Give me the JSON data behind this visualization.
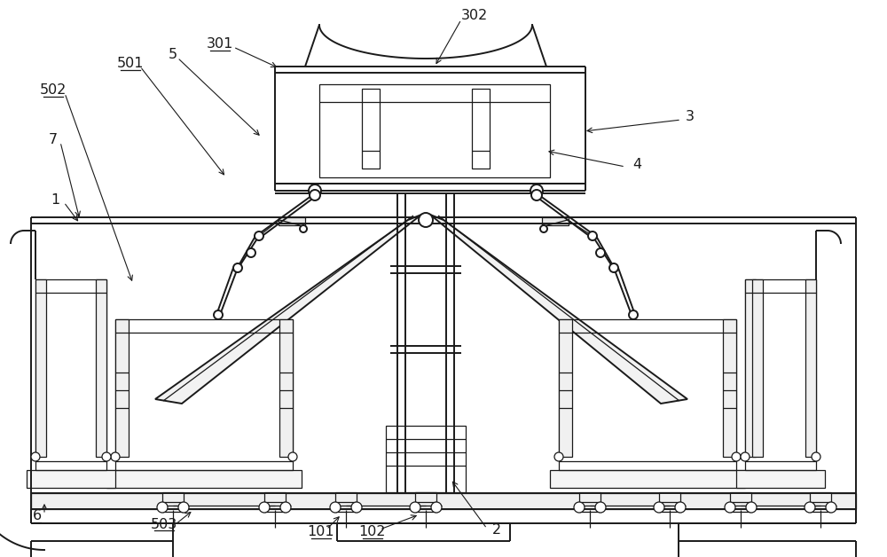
{
  "bg_color": "#ffffff",
  "line_color": "#1a1a1a",
  "lw": 1.4,
  "tlw": 0.9
}
